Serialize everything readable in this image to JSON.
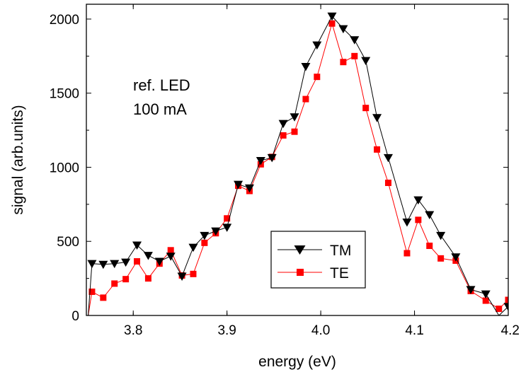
{
  "chart_data": {
    "type": "line",
    "title": "",
    "xlabel": "energy (eV)",
    "ylabel": "signal (arb.units)",
    "xlim": [
      3.75,
      4.2
    ],
    "ylim": [
      0,
      2100
    ],
    "x_ticks": [
      3.8,
      3.9,
      4.0,
      4.1,
      4.2
    ],
    "x_tick_labels": [
      "3.8",
      "3.9",
      "4.0",
      "4.1",
      "4.2"
    ],
    "y_ticks": [
      0,
      500,
      1000,
      1500,
      2000
    ],
    "y_tick_labels": [
      "0",
      "500",
      "1000",
      "1500",
      "2000"
    ],
    "annotation": [
      "ref. LED",
      "100 mA"
    ],
    "legend_position": "lower-right",
    "grid": false,
    "series": [
      {
        "name": "TM",
        "color": "#000000",
        "marker": "triangle-down",
        "x": [
          3.752,
          3.756,
          3.768,
          3.78,
          3.792,
          3.804,
          3.816,
          3.828,
          3.84,
          3.852,
          3.864,
          3.876,
          3.888,
          3.9,
          3.912,
          3.924,
          3.936,
          3.948,
          3.96,
          3.972,
          3.984,
          3.996,
          4.012,
          4.024,
          4.036,
          4.048,
          4.06,
          4.072,
          4.092,
          4.104,
          4.116,
          4.128,
          4.144,
          4.16,
          4.176,
          4.19,
          4.2
        ],
        "y": [
          0,
          350,
          345,
          350,
          360,
          475,
          405,
          365,
          400,
          265,
          460,
          540,
          570,
          595,
          885,
          860,
          1045,
          1065,
          1295,
          1340,
          1680,
          1825,
          2020,
          1935,
          1860,
          1720,
          1335,
          1065,
          630,
          780,
          680,
          540,
          395,
          175,
          145,
          0,
          60
        ]
      },
      {
        "name": "TE",
        "color": "#ff0000",
        "marker": "square",
        "x": [
          3.752,
          3.756,
          3.768,
          3.78,
          3.792,
          3.804,
          3.816,
          3.828,
          3.84,
          3.852,
          3.864,
          3.876,
          3.888,
          3.9,
          3.912,
          3.924,
          3.936,
          3.948,
          3.96,
          3.972,
          3.984,
          3.996,
          4.012,
          4.024,
          4.036,
          4.048,
          4.06,
          4.072,
          4.092,
          4.104,
          4.116,
          4.128,
          4.144,
          4.16,
          4.176,
          4.19,
          4.2
        ],
        "y": [
          0,
          160,
          120,
          215,
          245,
          365,
          250,
          350,
          440,
          270,
          280,
          490,
          555,
          655,
          875,
          840,
          1020,
          1070,
          1215,
          1240,
          1460,
          1610,
          1970,
          1710,
          1750,
          1400,
          1120,
          895,
          420,
          645,
          470,
          385,
          370,
          165,
          100,
          45,
          105
        ]
      }
    ]
  }
}
